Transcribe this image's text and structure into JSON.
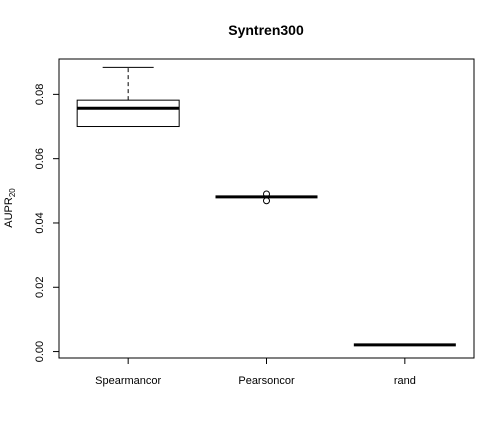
{
  "chart_data": {
    "type": "boxplot",
    "title": "Syntren300",
    "ylabel": "AUPR",
    "ylabel_subscript": "20",
    "xlabel": "",
    "ylim": [
      -0.002,
      0.091
    ],
    "yticks": [
      "0.00",
      "0.02",
      "0.04",
      "0.06",
      "0.08"
    ],
    "categories": [
      "Spearmancor",
      "Pearsoncor",
      "rand"
    ],
    "boxes": [
      {
        "category": "Spearmancor",
        "whisker_low": 0.07,
        "q1": 0.07,
        "median": 0.0757,
        "q3": 0.0782,
        "whisker_high": 0.0884,
        "outliers": []
      },
      {
        "category": "Pearsoncor",
        "whisker_low": 0.0481,
        "q1": 0.0481,
        "median": 0.0481,
        "q3": 0.0481,
        "whisker_high": 0.0481,
        "outliers": [
          0.049,
          0.0469
        ]
      },
      {
        "category": "rand",
        "whisker_low": 0.0021,
        "q1": 0.0021,
        "median": 0.0021,
        "q3": 0.0021,
        "whisker_high": 0.0021,
        "outliers": []
      }
    ],
    "grid": false,
    "legend": "none"
  }
}
